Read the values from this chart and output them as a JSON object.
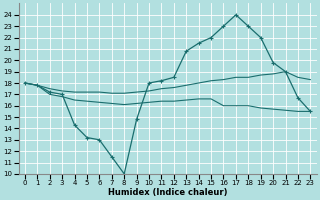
{
  "xlabel": "Humidex (Indice chaleur)",
  "ylabel": "",
  "bg_color": "#b2e0e0",
  "grid_color": "#ffffff",
  "line_color": "#1a6e6e",
  "xlim": [
    -0.5,
    23.5
  ],
  "ylim": [
    10,
    25.0
  ],
  "yticks": [
    10,
    11,
    12,
    13,
    14,
    15,
    16,
    17,
    18,
    19,
    20,
    21,
    22,
    23,
    24
  ],
  "xticks": [
    0,
    1,
    2,
    3,
    4,
    5,
    6,
    7,
    8,
    9,
    10,
    11,
    12,
    13,
    14,
    15,
    16,
    17,
    18,
    19,
    20,
    21,
    22,
    23
  ],
  "series": {
    "line1_x": [
      0,
      1,
      2,
      3,
      4,
      5,
      6,
      7,
      8,
      9,
      10,
      11,
      12,
      13,
      14,
      15,
      16,
      17,
      18,
      19,
      20,
      21,
      22,
      23
    ],
    "line1_y": [
      18.0,
      17.8,
      17.2,
      17.0,
      14.3,
      13.2,
      13.0,
      11.5,
      10.0,
      14.8,
      18.0,
      18.2,
      18.5,
      20.8,
      21.5,
      22.0,
      23.0,
      24.0,
      23.0,
      22.0,
      19.8,
      19.0,
      16.7,
      15.5
    ],
    "line2_x": [
      0,
      1,
      2,
      3,
      4,
      5,
      6,
      7,
      8,
      9,
      10,
      11,
      12,
      13,
      14,
      15,
      16,
      17,
      18,
      19,
      20,
      21,
      22,
      23
    ],
    "line2_y": [
      18.0,
      17.8,
      17.5,
      17.3,
      17.2,
      17.2,
      17.2,
      17.1,
      17.1,
      17.2,
      17.3,
      17.5,
      17.6,
      17.8,
      18.0,
      18.2,
      18.3,
      18.5,
      18.5,
      18.7,
      18.8,
      19.0,
      18.5,
      18.3
    ],
    "line3_x": [
      0,
      1,
      2,
      3,
      4,
      5,
      6,
      7,
      8,
      9,
      10,
      11,
      12,
      13,
      14,
      15,
      16,
      17,
      18,
      19,
      20,
      21,
      22,
      23
    ],
    "line3_y": [
      18.0,
      17.8,
      17.0,
      16.8,
      16.5,
      16.4,
      16.3,
      16.2,
      16.1,
      16.2,
      16.3,
      16.4,
      16.4,
      16.5,
      16.6,
      16.6,
      16.0,
      16.0,
      16.0,
      15.8,
      15.7,
      15.6,
      15.5,
      15.5
    ]
  }
}
